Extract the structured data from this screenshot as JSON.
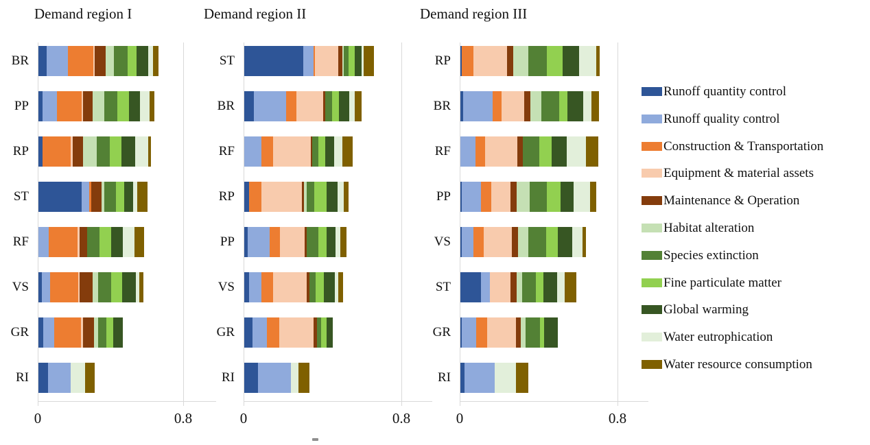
{
  "figure": {
    "background": "#ffffff",
    "axis_color": "#d9d9d9",
    "text_color": "#111111"
  },
  "legend": {
    "position": "right",
    "items": [
      {
        "label": "Runoff quantity control",
        "color": "#2E5597"
      },
      {
        "label": "Runoff quality control",
        "color": "#8FAADC"
      },
      {
        "label": "Construction & Transportation",
        "color": "#ED7D31"
      },
      {
        "label": "Equipment & material assets",
        "color": "#F8CBAD"
      },
      {
        "label": "Maintenance & Operation",
        "color": "#843C0C"
      },
      {
        "label": "Habitat alteration",
        "color": "#C5E0B4"
      },
      {
        "label": "Species extinction",
        "color": "#538135"
      },
      {
        "label": "Fine particulate matter",
        "color": "#92D050"
      },
      {
        "label": "Global warming",
        "color": "#375623"
      },
      {
        "label": "Water eutrophication",
        "color": "#E2EFDA"
      },
      {
        "label": "Water resource consumption",
        "color": "#7F6000"
      }
    ]
  },
  "chart_data": [
    {
      "type": "bar",
      "subtype": "horizontal_stacked",
      "title": "Demand region I",
      "xlim": [
        0,
        0.8
      ],
      "xtick_labels": [
        "0",
        "0.8"
      ],
      "grid": "vertical line at 0.8 only",
      "categories": [
        "BR",
        "PP",
        "RP",
        "ST",
        "RF",
        "VS",
        "GR",
        "RI"
      ],
      "series": [
        {
          "name": "Runoff quantity control",
          "values": [
            0.045,
            0.023,
            0.023,
            0.237,
            0,
            0.019,
            0.028,
            0.053
          ]
        },
        {
          "name": "Runoff quality control",
          "values": [
            0.116,
            0.078,
            0,
            0.042,
            0.057,
            0.044,
            0.057,
            0.125
          ]
        },
        {
          "name": "Construction & Transportation",
          "values": [
            0.142,
            0.136,
            0.155,
            0.01,
            0.158,
            0.156,
            0.15,
            0
          ]
        },
        {
          "name": "Equipment & material assets",
          "values": [
            0.008,
            0.009,
            0.012,
            0,
            0.01,
            0.009,
            0.01,
            0
          ]
        },
        {
          "name": "Maintenance & Operation",
          "values": [
            0.058,
            0.052,
            0.056,
            0.06,
            0.044,
            0.072,
            0.061,
            0
          ]
        },
        {
          "name": "Habitat alteration",
          "values": [
            0.048,
            0.064,
            0.073,
            0.012,
            0,
            0.028,
            0.023,
            0
          ]
        },
        {
          "name": "Species extinction",
          "values": [
            0.072,
            0.072,
            0.075,
            0.064,
            0.068,
            0.071,
            0.044,
            0
          ]
        },
        {
          "name": "Fine particulate matter",
          "values": [
            0.052,
            0.066,
            0.063,
            0.048,
            0.062,
            0.063,
            0.04,
            0
          ]
        },
        {
          "name": "Global warming",
          "values": [
            0.064,
            0.057,
            0.077,
            0.049,
            0.064,
            0.074,
            0.051,
            0
          ]
        },
        {
          "name": "Water eutrophication",
          "values": [
            0.024,
            0.056,
            0.07,
            0.02,
            0.065,
            0.02,
            0,
            0.078
          ]
        },
        {
          "name": "Water resource consumption",
          "values": [
            0.031,
            0.025,
            0.015,
            0.057,
            0.055,
            0.02,
            0,
            0.054
          ]
        }
      ]
    },
    {
      "type": "bar",
      "subtype": "horizontal_stacked",
      "title": "Demand region II",
      "xlim": [
        0,
        0.8
      ],
      "xtick_labels": [
        "0",
        "0.8"
      ],
      "grid": "vertical line at 0.8 only",
      "categories": [
        "ST",
        "BR",
        "RF",
        "RP",
        "PP",
        "VS",
        "GR",
        "RI"
      ],
      "series": [
        {
          "name": "Runoff quantity control",
          "values": [
            0.3,
            0.049,
            0,
            0.023,
            0.017,
            0.023,
            0.041,
            0.069
          ]
        },
        {
          "name": "Runoff quality control",
          "values": [
            0.052,
            0.163,
            0.087,
            0,
            0.11,
            0.064,
            0.073,
            0.168
          ]
        },
        {
          "name": "Construction & Transportation",
          "values": [
            0.005,
            0.054,
            0.058,
            0.064,
            0.055,
            0.058,
            0.063,
            0
          ]
        },
        {
          "name": "Equipment & material assets",
          "values": [
            0.121,
            0.134,
            0.192,
            0.206,
            0.125,
            0.172,
            0.176,
            0
          ]
        },
        {
          "name": "Maintenance & Operation",
          "values": [
            0.02,
            0.012,
            0.008,
            0.008,
            0.01,
            0.015,
            0.015,
            0
          ]
        },
        {
          "name": "Habitat alteration",
          "values": [
            0.008,
            0,
            0,
            0.017,
            0,
            0,
            0,
            0
          ]
        },
        {
          "name": "Species extinction",
          "values": [
            0.024,
            0.032,
            0.032,
            0.036,
            0.06,
            0.03,
            0.022,
            0
          ]
        },
        {
          "name": "Fine particulate matter",
          "values": [
            0.031,
            0.036,
            0.035,
            0.064,
            0.042,
            0.042,
            0.027,
            0
          ]
        },
        {
          "name": "Global warming",
          "values": [
            0.035,
            0.054,
            0.044,
            0.054,
            0.042,
            0.056,
            0.033,
            0
          ]
        },
        {
          "name": "Water eutrophication",
          "values": [
            0.009,
            0.026,
            0.042,
            0.032,
            0.027,
            0.016,
            0,
            0.037
          ]
        },
        {
          "name": "Water resource consumption",
          "values": [
            0.052,
            0.036,
            0.053,
            0.024,
            0.03,
            0.024,
            0,
            0.058
          ]
        }
      ]
    },
    {
      "type": "bar",
      "subtype": "horizontal_stacked",
      "title": "Demand region III",
      "xlim": [
        0,
        0.8
      ],
      "xtick_labels": [
        "0",
        "0.8"
      ],
      "grid": "vertical line at 0.8 only",
      "categories": [
        "RP",
        "BR",
        "RF",
        "PP",
        "VS",
        "ST",
        "GR",
        "RI"
      ],
      "series": [
        {
          "name": "Runoff quantity control",
          "values": [
            0.007,
            0.014,
            0,
            0.006,
            0.006,
            0.104,
            0.006,
            0.021
          ]
        },
        {
          "name": "Runoff quality control",
          "values": [
            0,
            0.149,
            0.077,
            0.097,
            0.06,
            0.046,
            0.074,
            0.154
          ]
        },
        {
          "name": "Construction & Transportation",
          "values": [
            0.058,
            0.047,
            0.047,
            0.052,
            0.054,
            0,
            0.055,
            0
          ]
        },
        {
          "name": "Equipment & material assets",
          "values": [
            0.17,
            0.112,
            0.164,
            0.098,
            0.141,
            0.103,
            0.148,
            0
          ]
        },
        {
          "name": "Maintenance & Operation",
          "values": [
            0.033,
            0.032,
            0.03,
            0.032,
            0.032,
            0.033,
            0.024,
            0
          ]
        },
        {
          "name": "Habitat alteration",
          "values": [
            0.078,
            0.056,
            0,
            0.066,
            0.051,
            0.027,
            0.024,
            0
          ]
        },
        {
          "name": "Species extinction",
          "values": [
            0.094,
            0.091,
            0.083,
            0.088,
            0.09,
            0.071,
            0.071,
            0
          ]
        },
        {
          "name": "Fine particulate matter",
          "values": [
            0.077,
            0.041,
            0.062,
            0.068,
            0.059,
            0.037,
            0.024,
            0
          ]
        },
        {
          "name": "Global warming",
          "values": [
            0.085,
            0.08,
            0.078,
            0.068,
            0.074,
            0.07,
            0.068,
            0
          ]
        },
        {
          "name": "Water eutrophication",
          "values": [
            0.087,
            0.044,
            0.094,
            0.083,
            0.051,
            0.039,
            0,
            0.106
          ]
        },
        {
          "name": "Water resource consumption",
          "values": [
            0.018,
            0.038,
            0.064,
            0.03,
            0.02,
            0.058,
            0,
            0.063
          ]
        }
      ]
    }
  ]
}
